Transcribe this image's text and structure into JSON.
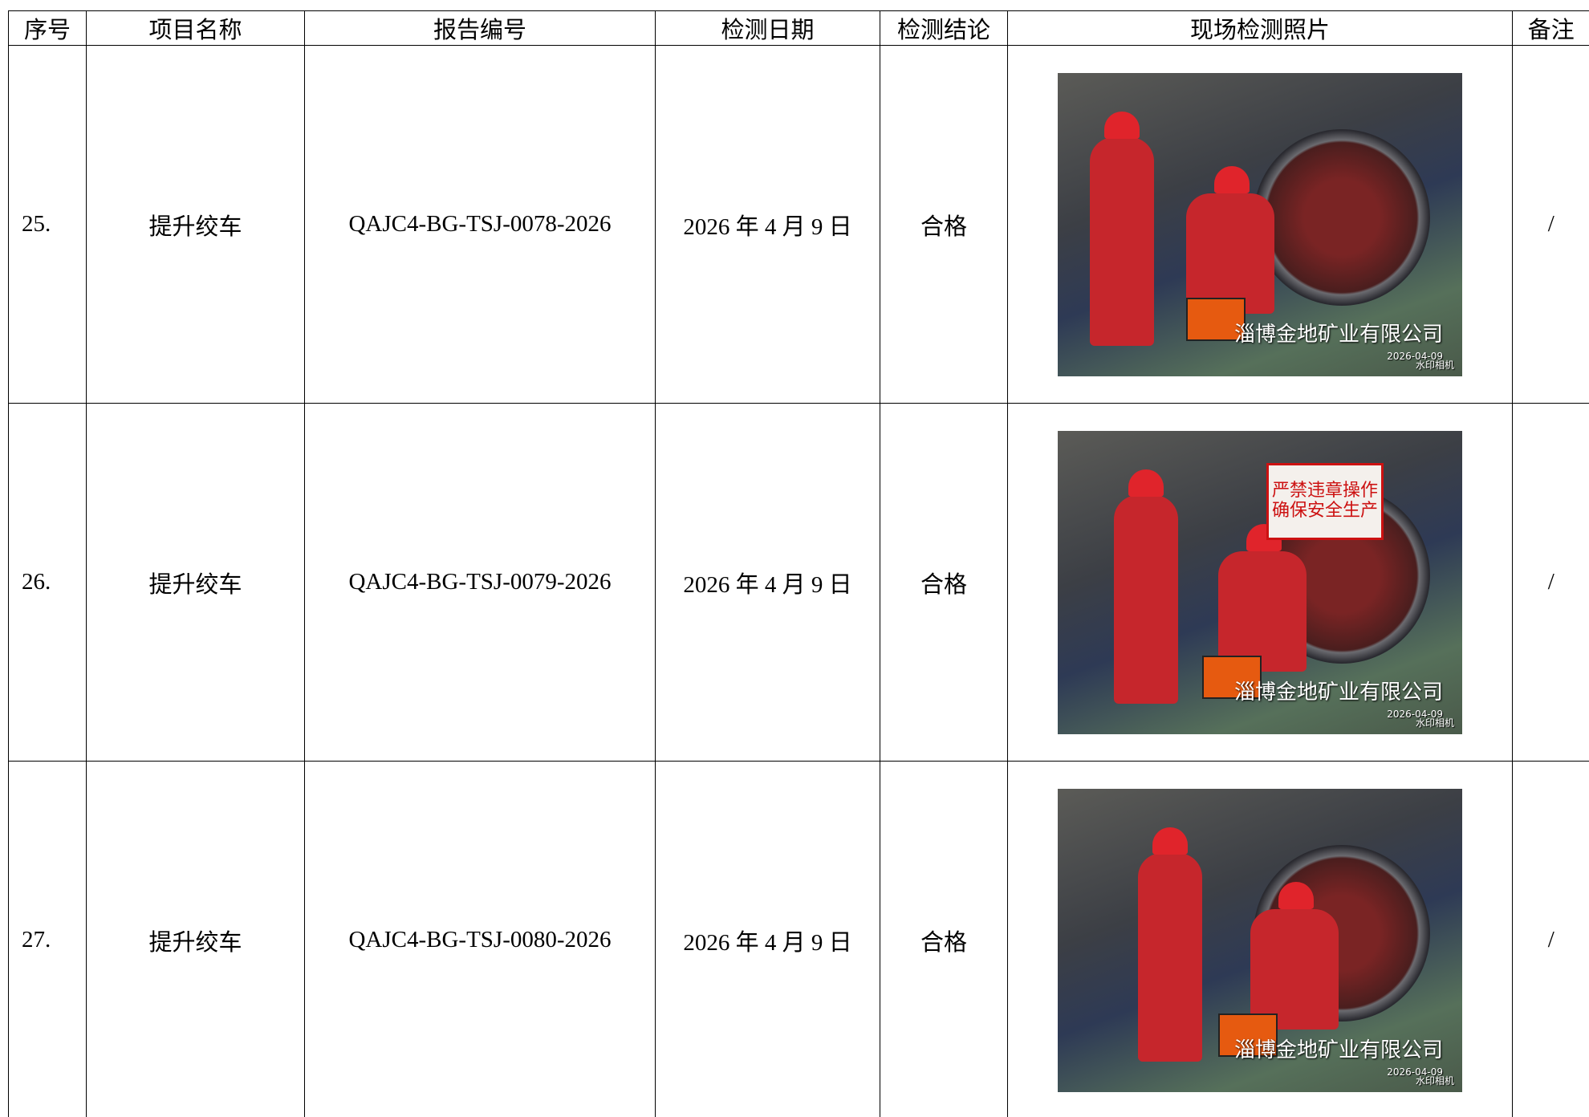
{
  "table": {
    "header": [
      "序号",
      "项目名称",
      "报告编号",
      "检测日期",
      "检测结论",
      "现场检测照片",
      "备注"
    ],
    "rows": [
      [
        "25.",
        "提升绞车",
        "QAJC4-BG-TSJ-0078-2026",
        "2026 年 4 月 9 日",
        "合格",
        {
          "watermark": "淄博金地矿业有限公司",
          "date": "2026-04-09",
          "app": "水印相机"
        },
        "/"
      ],
      [
        "26.",
        "提升绞车",
        "QAJC4-BG-TSJ-0079-2026",
        "2026 年 4 月 9 日",
        "合格",
        {
          "sign": "严禁违章操作 确保安全生产",
          "watermark": "淄博金地矿业有限公司",
          "date": "2026-04-09",
          "app": "水印相机"
        },
        "/"
      ],
      [
        "27.",
        "提升绞车",
        "QAJC4-BG-TSJ-0080-2026",
        "2026 年 4 月 9 日",
        "合格",
        {
          "watermark": "淄博金地矿业有限公司",
          "date": "2026-04-09",
          "app": "水印相机"
        },
        "/"
      ]
    ]
  }
}
